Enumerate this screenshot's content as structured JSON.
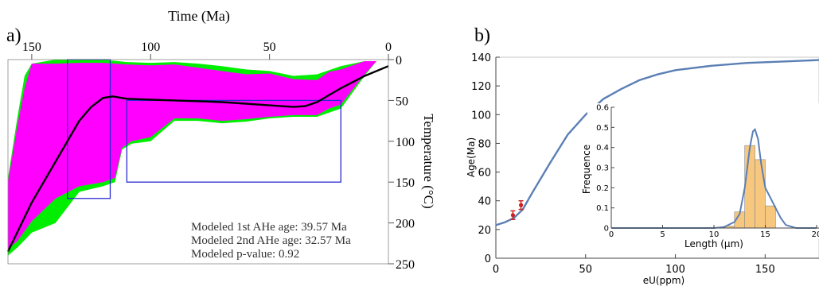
{
  "chart_data": [
    {
      "panel_label": "a)",
      "type": "area",
      "xlabel": "Time (Ma)",
      "ylabel": "Temperature (°C)",
      "xlim": [
        160,
        0
      ],
      "ylim": [
        0,
        250
      ],
      "x_ticks": [
        150,
        100,
        50,
        0
      ],
      "y_ticks": [
        0,
        50,
        100,
        150,
        200,
        250
      ],
      "series": [
        {
          "name": "",
          "color": "#00ee00",
          "upper": [
            [
              160,
              145
            ],
            [
              156,
              70
            ],
            [
              153,
              20
            ],
            [
              150,
              5
            ],
            [
              140,
              0
            ],
            [
              130,
              0
            ],
            [
              120,
              0
            ],
            [
              110,
              3
            ],
            [
              100,
              4
            ],
            [
              90,
              3
            ],
            [
              80,
              5
            ],
            [
              70,
              8
            ],
            [
              60,
              12
            ],
            [
              50,
              14
            ],
            [
              40,
              20
            ],
            [
              30,
              18
            ],
            [
              20,
              8
            ],
            [
              10,
              2
            ],
            [
              5,
              2
            ]
          ],
          "lower": [
            [
              160,
              240
            ],
            [
              156,
              230
            ],
            [
              150,
              212
            ],
            [
              140,
              200
            ],
            [
              130,
              162
            ],
            [
              120,
              155
            ],
            [
              115,
              150
            ],
            [
              112,
              110
            ],
            [
              108,
              103
            ],
            [
              100,
              100
            ],
            [
              90,
              75
            ],
            [
              80,
              75
            ],
            [
              70,
              78
            ],
            [
              60,
              76
            ],
            [
              50,
              72
            ],
            [
              40,
              70
            ],
            [
              30,
              70
            ],
            [
              20,
              60
            ],
            [
              10,
              20
            ],
            [
              5,
              2
            ]
          ]
        },
        {
          "name": "",
          "color": "#ff00ff",
          "upper": [
            [
              160,
              150
            ],
            [
              156,
              80
            ],
            [
              153,
              35
            ],
            [
              150,
              5
            ],
            [
              140,
              5
            ],
            [
              130,
              4
            ],
            [
              120,
              4
            ],
            [
              110,
              6
            ],
            [
              100,
              7
            ],
            [
              90,
              6
            ],
            [
              80,
              10
            ],
            [
              70,
              14
            ],
            [
              60,
              18
            ],
            [
              50,
              17
            ],
            [
              40,
              24
            ],
            [
              30,
              25
            ],
            [
              25,
              15
            ],
            [
              20,
              12
            ],
            [
              10,
              2
            ],
            [
              5,
              2
            ]
          ],
          "lower": [
            [
              160,
              232
            ],
            [
              156,
              222
            ],
            [
              150,
              198
            ],
            [
              140,
              170
            ],
            [
              130,
              155
            ],
            [
              120,
              150
            ],
            [
              115,
              145
            ],
            [
              112,
              108
            ],
            [
              108,
              100
            ],
            [
              100,
              95
            ],
            [
              90,
              72
            ],
            [
              80,
              72
            ],
            [
              70,
              75
            ],
            [
              60,
              73
            ],
            [
              50,
              70
            ],
            [
              40,
              68
            ],
            [
              30,
              68
            ],
            [
              25,
              60
            ],
            [
              20,
              55
            ],
            [
              10,
              18
            ],
            [
              5,
              2
            ]
          ]
        }
      ],
      "best_path": [
        [
          160,
          235
        ],
        [
          150,
          175
        ],
        [
          140,
          125
        ],
        [
          130,
          75
        ],
        [
          125,
          58
        ],
        [
          120,
          47
        ],
        [
          116,
          45
        ],
        [
          110,
          48
        ],
        [
          100,
          49
        ],
        [
          90,
          50
        ],
        [
          80,
          51
        ],
        [
          70,
          52
        ],
        [
          60,
          54
        ],
        [
          50,
          56
        ],
        [
          40,
          58
        ],
        [
          35,
          57
        ],
        [
          30,
          52
        ],
        [
          20,
          35
        ],
        [
          10,
          20
        ],
        [
          0,
          8
        ]
      ],
      "boxes": [
        {
          "t": [
            135,
            117
          ],
          "temp": [
            0,
            170
          ]
        },
        {
          "t": [
            110,
            20
          ],
          "temp": [
            50,
            150
          ]
        }
      ],
      "annotations": [
        "Modeled 1st AHe age: 39.57 Ma",
        "Modeled 2nd AHe age: 32.57 Ma",
        "Modeled  p-value:  0.92"
      ]
    },
    {
      "panel_label": "b)",
      "type": "line",
      "xlabel": "eU(ppm)",
      "ylabel": "Age(Ma)",
      "xlim": [
        0,
        180
      ],
      "ylim": [
        0,
        140
      ],
      "x_ticks": [
        0,
        50,
        100,
        150
      ],
      "y_ticks": [
        0,
        20,
        40,
        60,
        80,
        100,
        120,
        140
      ],
      "curve": {
        "x": [
          0,
          5,
          10,
          15,
          20,
          30,
          40,
          50,
          60,
          70,
          80,
          90,
          100,
          120,
          140,
          160,
          180
        ],
        "y": [
          23,
          25,
          28,
          34,
          45,
          66,
          86,
          100,
          111,
          118,
          124,
          128,
          131,
          134,
          136,
          137,
          138
        ]
      },
      "points": [
        {
          "x": 9.5,
          "y": 30,
          "err": 3
        },
        {
          "x": 14,
          "y": 37,
          "err": 3
        }
      ],
      "inset": {
        "type": "bar",
        "xlabel": "Length (μm)",
        "ylabel": "Frequence",
        "xlim": [
          0,
          20
        ],
        "ylim": [
          0,
          0.6
        ],
        "x_ticks": [
          0,
          5,
          10,
          15,
          20
        ],
        "y_ticks": [
          0,
          0.1,
          0.2,
          0.3,
          0.4,
          0.5,
          0.6
        ],
        "bins": [
          {
            "x0": 11,
            "x1": 12,
            "value": 0.01
          },
          {
            "x0": 12,
            "x1": 13,
            "value": 0.08
          },
          {
            "x0": 13,
            "x1": 14,
            "value": 0.41
          },
          {
            "x0": 14,
            "x1": 15,
            "value": 0.34
          },
          {
            "x0": 15,
            "x1": 16,
            "value": 0.11
          }
        ],
        "density": {
          "x": [
            0,
            10,
            11,
            12,
            12.5,
            13,
            13.5,
            13.8,
            14,
            14.3,
            14.6,
            15,
            15.5,
            16,
            16.5,
            17,
            18,
            20
          ],
          "y": [
            0,
            0,
            0.005,
            0.03,
            0.07,
            0.2,
            0.4,
            0.48,
            0.49,
            0.44,
            0.32,
            0.2,
            0.15,
            0.1,
            0.05,
            0.015,
            0,
            0
          ]
        }
      }
    }
  ]
}
